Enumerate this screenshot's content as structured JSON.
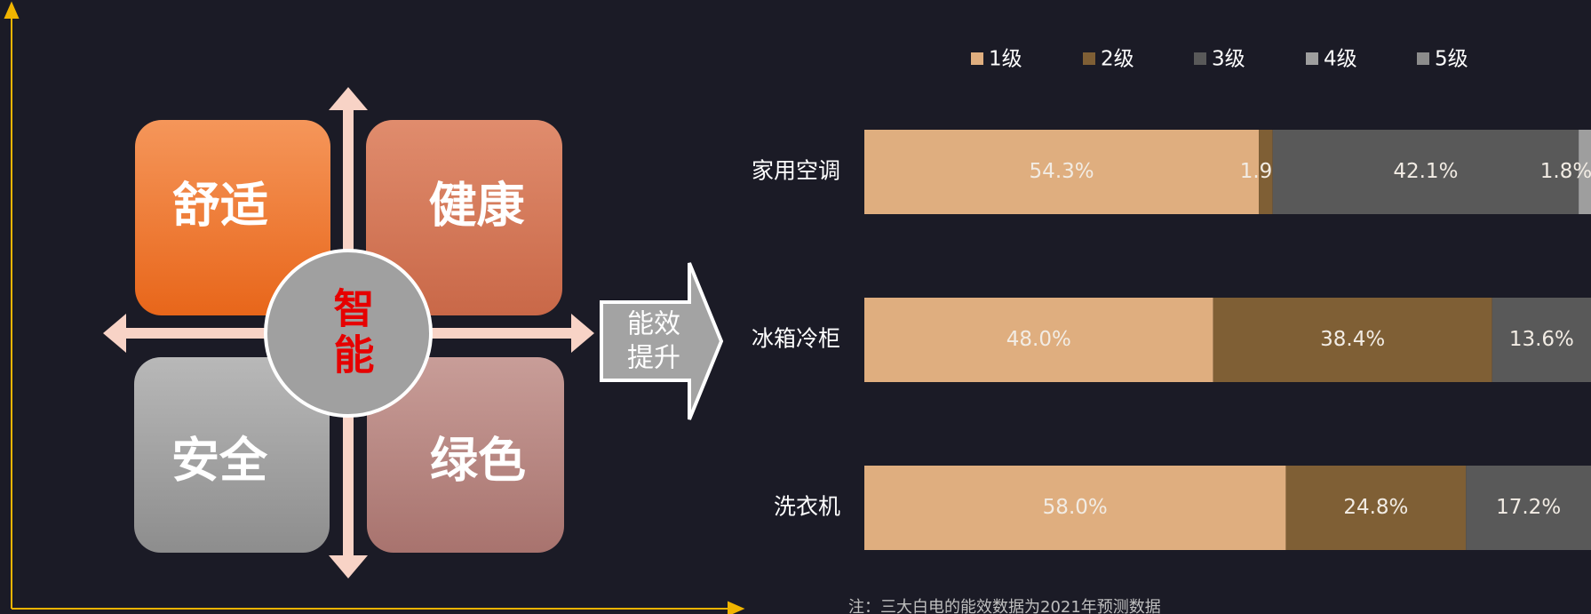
{
  "diagram": {
    "quadrants": [
      "舒适",
      "健康",
      "安全",
      "绿色"
    ],
    "center": "智能",
    "arrow_label": [
      "能效",
      "提升"
    ]
  },
  "chart_data": {
    "type": "stacked_bar_horizontal",
    "categories": [
      "家用空调",
      "冰箱冷柜",
      "洗衣机"
    ],
    "series": [
      {
        "name": "1级",
        "color": "#dfae7f",
        "values": [
          54.3,
          48.0,
          58.0
        ],
        "value_labels": [
          "54.3%",
          "48.0%",
          "58.0%"
        ]
      },
      {
        "name": "2级",
        "color": "#7f5f35",
        "values": [
          1.9,
          38.4,
          24.8
        ],
        "value_labels": [
          "1.9%",
          "38.4%",
          "24.8%"
        ]
      },
      {
        "name": "3级",
        "color": "#595959",
        "values": [
          42.1,
          13.6,
          17.2
        ],
        "value_labels": [
          "42.1%",
          "13.6%",
          "17.2%"
        ]
      },
      {
        "name": "4级",
        "color": "#9e9e9e",
        "values": [
          1.8,
          null,
          null
        ],
        "value_labels": [
          "1.8%",
          null,
          null
        ]
      },
      {
        "name": "5级",
        "color": "#8c8c8c",
        "values": [
          null,
          null,
          null
        ],
        "value_labels": [
          null,
          null,
          null
        ]
      }
    ],
    "xlim": [
      0,
      100
    ],
    "legend": "top",
    "note": "注：三大白电的能效数据为2021年预测数据"
  }
}
